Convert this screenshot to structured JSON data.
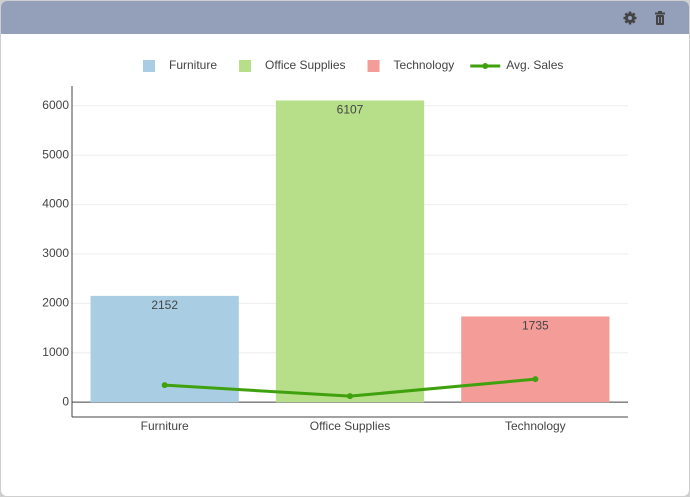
{
  "chart_data": {
    "type": "bar",
    "categories": [
      "Furniture",
      "Office Supplies",
      "Technology"
    ],
    "series": [
      {
        "name": "Furniture",
        "type": "bar",
        "color": "#a9cde3",
        "values": [
          2152,
          null,
          null
        ]
      },
      {
        "name": "Office Supplies",
        "type": "bar",
        "color": "#b7de88",
        "values": [
          null,
          6107,
          null
        ]
      },
      {
        "name": "Technology",
        "type": "bar",
        "color": "#f49c97",
        "values": [
          null,
          null,
          1735
        ]
      },
      {
        "name": "Avg. Sales",
        "type": "line",
        "color": "#3fa10e",
        "values": [
          345,
          122,
          466
        ]
      }
    ],
    "ylim": [
      -300,
      6400
    ],
    "yticks": [
      0,
      1000,
      2000,
      3000,
      4000,
      5000,
      6000
    ],
    "grid": true,
    "legend": "top"
  }
}
